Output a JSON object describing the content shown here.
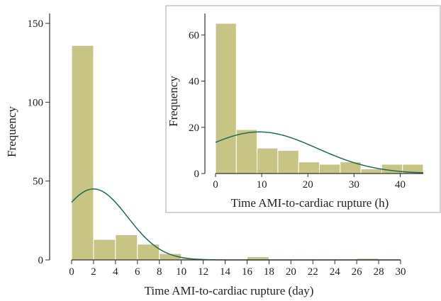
{
  "chart_data": [
    {
      "type": "histogram",
      "xlabel": "Time AMI-to-cardiac rupture (day)",
      "ylabel": "Frequency",
      "xlim": [
        0,
        30
      ],
      "ylim": [
        0,
        150
      ],
      "x_ticks": [
        "0",
        "2",
        "4",
        "6",
        "8",
        "10",
        "12",
        "14",
        "16",
        "18",
        "20",
        "22",
        "24",
        "26",
        "28",
        "30"
      ],
      "y_ticks": [
        "0",
        "50",
        "100",
        "150"
      ],
      "bins": [
        {
          "start": 0,
          "end": 2,
          "value": 136
        },
        {
          "start": 2,
          "end": 4,
          "value": 13
        },
        {
          "start": 4,
          "end": 6,
          "value": 16
        },
        {
          "start": 6,
          "end": 8,
          "value": 10
        },
        {
          "start": 8,
          "end": 10,
          "value": 4
        },
        {
          "start": 10,
          "end": 12,
          "value": 1
        },
        {
          "start": 16,
          "end": 18,
          "value": 2
        },
        {
          "start": 26,
          "end": 28,
          "value": 1
        }
      ],
      "normal_curve": {
        "mean": 2.0,
        "sd": 3.1,
        "peak": 45
      },
      "colors": {
        "bar": "#c8c483",
        "bar_edge": "#ffffff",
        "curve": "#1f6b55",
        "axis": "#333333"
      }
    },
    {
      "type": "histogram",
      "xlabel": "Time AMI-to-cardiac rupture (h)",
      "ylabel": "Frequency",
      "xlim": [
        0,
        45
      ],
      "ylim": [
        0,
        65
      ],
      "x_ticks": [
        "0",
        "10",
        "20",
        "30",
        "40"
      ],
      "y_ticks": [
        "0",
        "20",
        "40",
        "60"
      ],
      "bins": [
        {
          "start": 0,
          "end": 4.5,
          "value": 65
        },
        {
          "start": 4.5,
          "end": 9,
          "value": 19
        },
        {
          "start": 9,
          "end": 13.5,
          "value": 11
        },
        {
          "start": 13.5,
          "end": 18,
          "value": 10
        },
        {
          "start": 18,
          "end": 22.5,
          "value": 5
        },
        {
          "start": 22.5,
          "end": 27,
          "value": 4
        },
        {
          "start": 27,
          "end": 31.5,
          "value": 5
        },
        {
          "start": 31.5,
          "end": 36,
          "value": 2
        },
        {
          "start": 36,
          "end": 40.5,
          "value": 4
        },
        {
          "start": 40.5,
          "end": 45,
          "value": 4
        }
      ],
      "normal_curve": {
        "mean": 9.5,
        "sd": 12.5,
        "peak": 18
      },
      "colors": {
        "bar": "#c8c483",
        "bar_edge": "#ffffff",
        "curve": "#1f6b55",
        "axis": "#333333"
      }
    }
  ]
}
